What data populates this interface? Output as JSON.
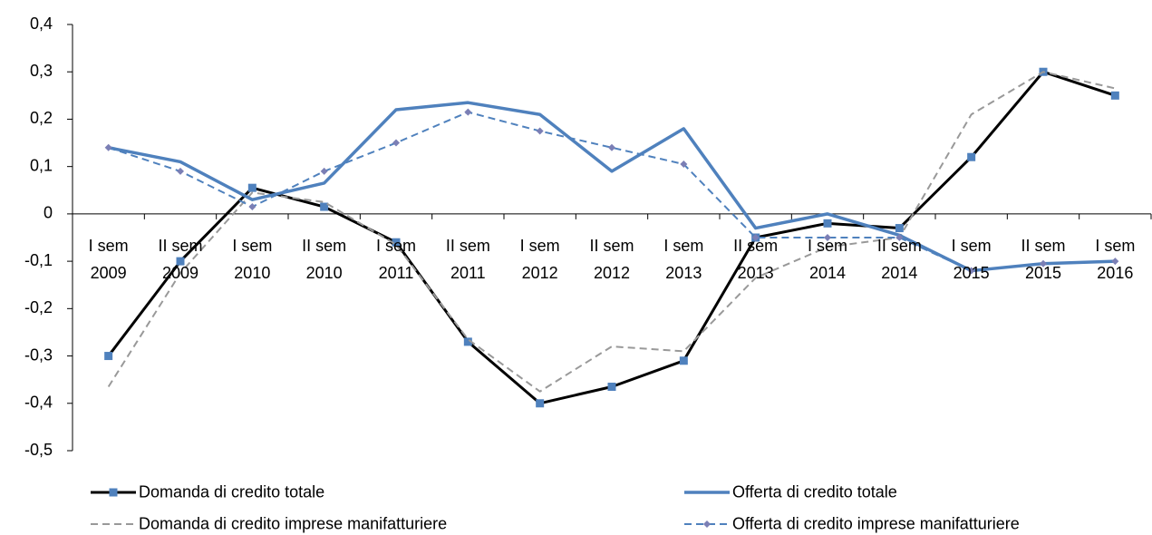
{
  "chart_data": {
    "type": "line",
    "categories": [
      "I sem\n2009",
      "II sem\n2009",
      "I sem\n2010",
      "II sem\n2010",
      "I sem\n2011",
      "II sem\n2011",
      "I sem\n2012",
      "II sem\n2012",
      "I sem\n2013",
      "II sem\n2013",
      "I sem\n2014",
      "II sem\n2014",
      "I sem\n2015",
      "II sem\n2015",
      "I sem\n2016"
    ],
    "series": [
      {
        "name": "Domanda di credito totale",
        "color": "#000000",
        "dash": false,
        "marker": "square",
        "markerColor": "#4f81bd",
        "width": 3,
        "values": [
          -0.3,
          -0.1,
          0.055,
          0.015,
          -0.06,
          -0.27,
          -0.4,
          -0.365,
          -0.31,
          -0.05,
          -0.02,
          -0.03,
          0.12,
          0.3,
          0.25
        ]
      },
      {
        "name": "Domanda di credito imprese manifatturiere",
        "color": "#999999",
        "dash": true,
        "marker": "none",
        "markerColor": "#999999",
        "width": 2,
        "values": [
          -0.365,
          -0.125,
          0.045,
          0.025,
          -0.065,
          -0.265,
          -0.375,
          -0.28,
          -0.29,
          -0.135,
          -0.07,
          -0.05,
          0.21,
          0.3,
          0.265
        ]
      },
      {
        "name": "Offerta di credito totale",
        "color": "#4f81bd",
        "dash": false,
        "marker": "none",
        "markerColor": "#4f81bd",
        "width": 3.5,
        "values": [
          0.14,
          0.11,
          0.03,
          0.065,
          0.22,
          0.235,
          0.21,
          0.09,
          0.18,
          -0.03,
          0,
          -0.045,
          -0.12,
          -0.105,
          -0.1
        ]
      },
      {
        "name": "Offerta di credito imprese manifatturiere",
        "color": "#4f81bd",
        "dash": true,
        "marker": "diamond",
        "markerColor": "#7b7fb5",
        "width": 2,
        "values": [
          0.14,
          0.09,
          0.015,
          0.09,
          0.15,
          0.215,
          0.175,
          0.14,
          0.105,
          -0.05,
          -0.05,
          -0.05,
          -0.12,
          -0.105,
          -0.1
        ]
      }
    ],
    "ylim": [
      -0.5,
      0.4
    ],
    "yticks": [
      {
        "value": 0.4,
        "label": "0,4"
      },
      {
        "value": 0.3,
        "label": "0,3"
      },
      {
        "value": 0.2,
        "label": "0,2"
      },
      {
        "value": 0.1,
        "label": "0,1"
      },
      0,
      {
        "value": -0.1,
        "label": "-0,1"
      },
      {
        "value": -0.2,
        "label": "-0,2"
      },
      {
        "value": -0.3,
        "label": "-0,3"
      },
      {
        "value": -0.4,
        "label": "-0,4"
      },
      {
        "value": -0.5,
        "label": "-0,5"
      }
    ],
    "grid": false,
    "legend": "bottom"
  }
}
